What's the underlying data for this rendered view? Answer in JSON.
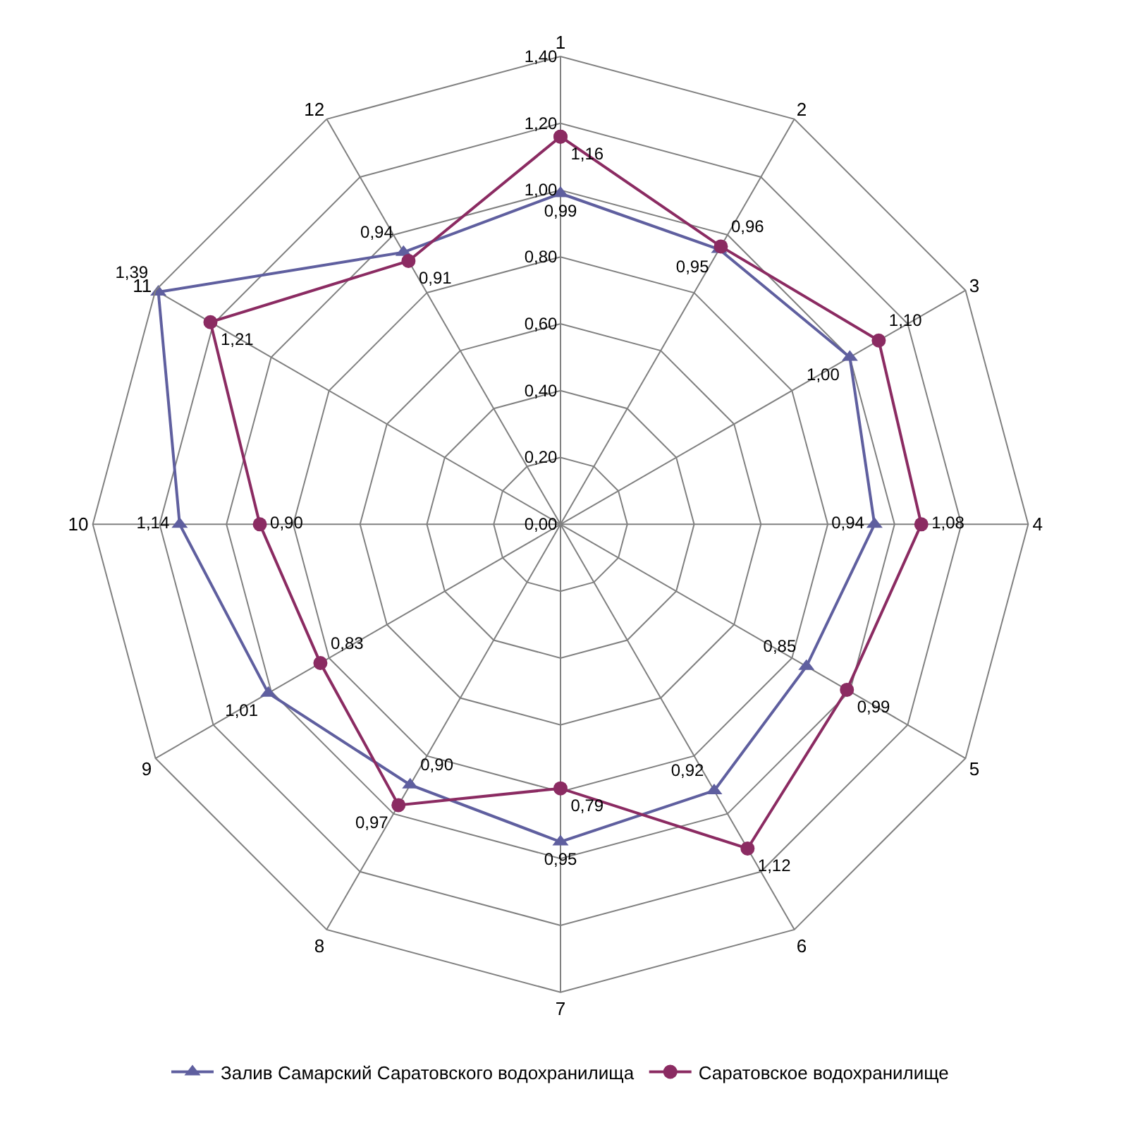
{
  "chart_data": {
    "type": "radar",
    "categories": [
      "1",
      "2",
      "3",
      "4",
      "5",
      "6",
      "7",
      "8",
      "9",
      "10",
      "11",
      "12"
    ],
    "ylim": [
      0,
      1.4
    ],
    "yticks": [
      {
        "value": 0,
        "label": "0,00"
      },
      {
        "value": 0.2,
        "label": "0,20"
      },
      {
        "value": 0.4,
        "label": "0,40"
      },
      {
        "value": 0.6,
        "label": "0,60"
      },
      {
        "value": 0.8,
        "label": "0,80"
      },
      {
        "value": 1,
        "label": "1,00"
      },
      {
        "value": 1.2,
        "label": "1,20"
      },
      {
        "value": 1.4,
        "label": "1,40"
      }
    ],
    "grid": true,
    "legend": "bottom",
    "series": [
      {
        "name": "Залив Самарский Саратовского водохранилища",
        "color": "#5f5f9f",
        "marker": "triangle",
        "values": [
          0.99,
          0.95,
          1.0,
          0.94,
          0.85,
          0.92,
          0.95,
          0.9,
          1.01,
          1.14,
          1.39,
          0.94
        ],
        "value_labels": [
          "0,99",
          "0,95",
          "1,00",
          "0,94",
          "0,85",
          "0,92",
          "0,95",
          "0,90",
          "1,01",
          "1,14",
          "1,39",
          "0,94"
        ]
      },
      {
        "name": "Саратовское водохранилище",
        "color": "#8b2b62",
        "marker": "circle",
        "values": [
          1.16,
          0.96,
          1.1,
          1.08,
          0.99,
          1.12,
          0.79,
          0.97,
          0.83,
          0.9,
          1.21,
          0.91
        ],
        "value_labels": [
          "1,16",
          "0,96",
          "1,10",
          "1,08",
          "0,99",
          "1,12",
          "0,79",
          "0,97",
          "0,83",
          "0,90",
          "1,21",
          "0,91"
        ]
      }
    ]
  }
}
